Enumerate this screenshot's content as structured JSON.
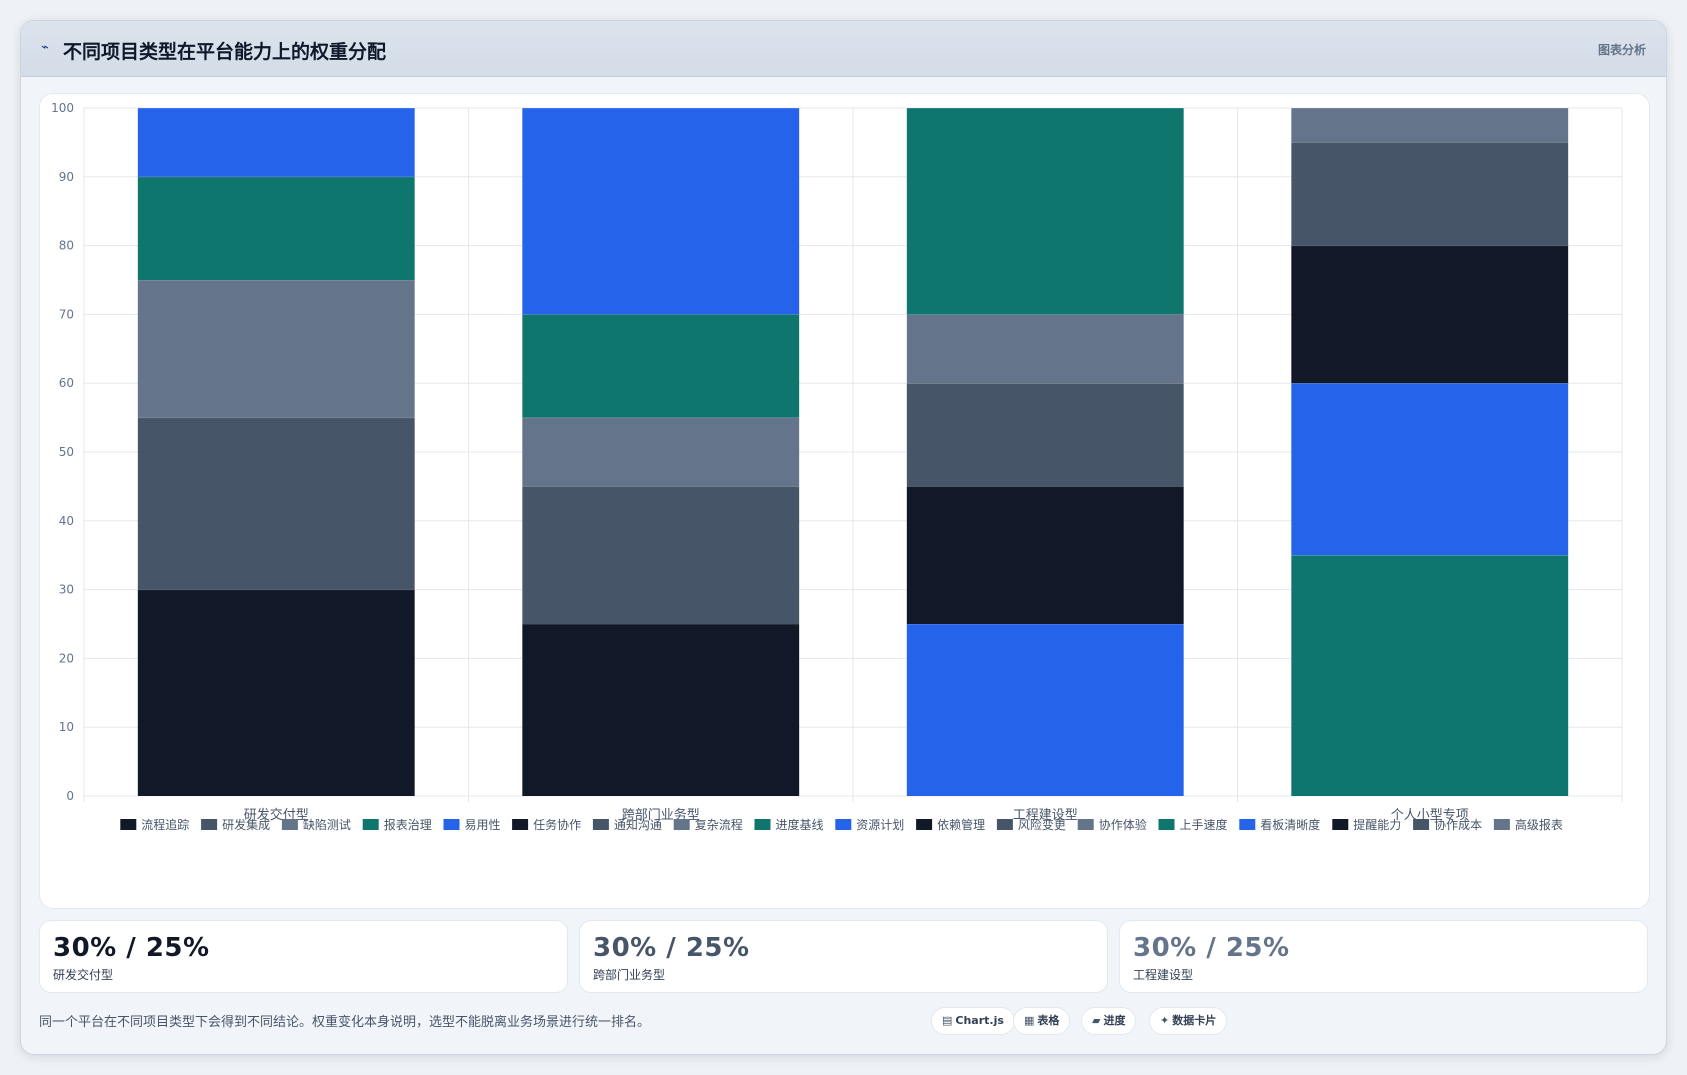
{
  "header": {
    "icon": "chart-line-icon",
    "title": "不同项目类型在平台能力上的权重分配",
    "right_label": "图表分析"
  },
  "colors": {
    "navy": "#111827",
    "slate_dark": "#475569",
    "slate": "#64748b",
    "teal": "#0f766e",
    "blue": "#2563eb"
  },
  "chart_data": {
    "type": "bar",
    "stacked": true,
    "categories": [
      "研发交付型",
      "跨部门业务型",
      "工程建设型",
      "个人小型专项"
    ],
    "ylim": [
      0,
      100
    ],
    "yticks": [
      0,
      10,
      20,
      30,
      40,
      50,
      60,
      70,
      80,
      90,
      100
    ],
    "grid": true,
    "legend_position": "bottom",
    "series": [
      {
        "name": "流程追踪",
        "color": "#111827",
        "values": [
          30,
          0,
          0,
          0
        ]
      },
      {
        "name": "研发集成",
        "color": "#475569",
        "values": [
          25,
          0,
          0,
          0
        ]
      },
      {
        "name": "缺陷测试",
        "color": "#64748b",
        "values": [
          20,
          0,
          0,
          0
        ]
      },
      {
        "name": "报表治理",
        "color": "#0f766e",
        "values": [
          15,
          0,
          0,
          0
        ]
      },
      {
        "name": "易用性",
        "color": "#2563eb",
        "values": [
          10,
          0,
          0,
          0
        ]
      },
      {
        "name": "任务协作",
        "color": "#111827",
        "values": [
          0,
          25,
          0,
          0
        ]
      },
      {
        "name": "通知沟通",
        "color": "#475569",
        "values": [
          0,
          20,
          0,
          0
        ]
      },
      {
        "name": "复杂流程",
        "color": "#64748b",
        "values": [
          0,
          10,
          0,
          0
        ]
      },
      {
        "name": "进度基线",
        "color": "#0f766e",
        "values": [
          0,
          15,
          0,
          0
        ]
      },
      {
        "name": "资源计划",
        "color": "#2563eb",
        "values": [
          0,
          30,
          25,
          0
        ]
      },
      {
        "name": "依赖管理",
        "color": "#111827",
        "values": [
          0,
          0,
          20,
          0
        ]
      },
      {
        "name": "风险变更",
        "color": "#475569",
        "values": [
          0,
          0,
          15,
          0
        ]
      },
      {
        "name": "协作体验",
        "color": "#64748b",
        "values": [
          0,
          0,
          10,
          0
        ]
      },
      {
        "name": "上手速度",
        "color": "#0f766e",
        "values": [
          0,
          0,
          30,
          35
        ]
      },
      {
        "name": "看板清晰度",
        "color": "#2563eb",
        "values": [
          0,
          0,
          0,
          25
        ]
      },
      {
        "name": "提醒能力",
        "color": "#111827",
        "values": [
          0,
          0,
          0,
          20
        ]
      },
      {
        "name": "协作成本",
        "color": "#475569",
        "values": [
          0,
          0,
          0,
          15
        ]
      },
      {
        "name": "高级报表",
        "color": "#64748b",
        "values": [
          0,
          0,
          0,
          5
        ]
      }
    ]
  },
  "cards": [
    {
      "value": "30% / 25%",
      "label": "研发交付型",
      "color": "#111827"
    },
    {
      "value": "30% / 25%",
      "label": "跨部门业务型",
      "color": "#475569"
    },
    {
      "value": "30% / 25%",
      "label": "工程建设型",
      "color": "#64748b"
    }
  ],
  "footnote": "同一个平台在不同项目类型下会得到不同结论。权重变化本身说明，选型不能脱离业务场景进行统一排名。",
  "pills": [
    {
      "icon": "table-icon",
      "glyph": "▤",
      "label": "Chart.js"
    },
    {
      "icon": "grid-icon",
      "glyph": "▦",
      "label": "表格"
    },
    {
      "icon": "progress-icon",
      "glyph": "▰",
      "label": "进度"
    },
    {
      "icon": "sparkle-icon",
      "glyph": "✦",
      "label": "数据卡片"
    }
  ]
}
